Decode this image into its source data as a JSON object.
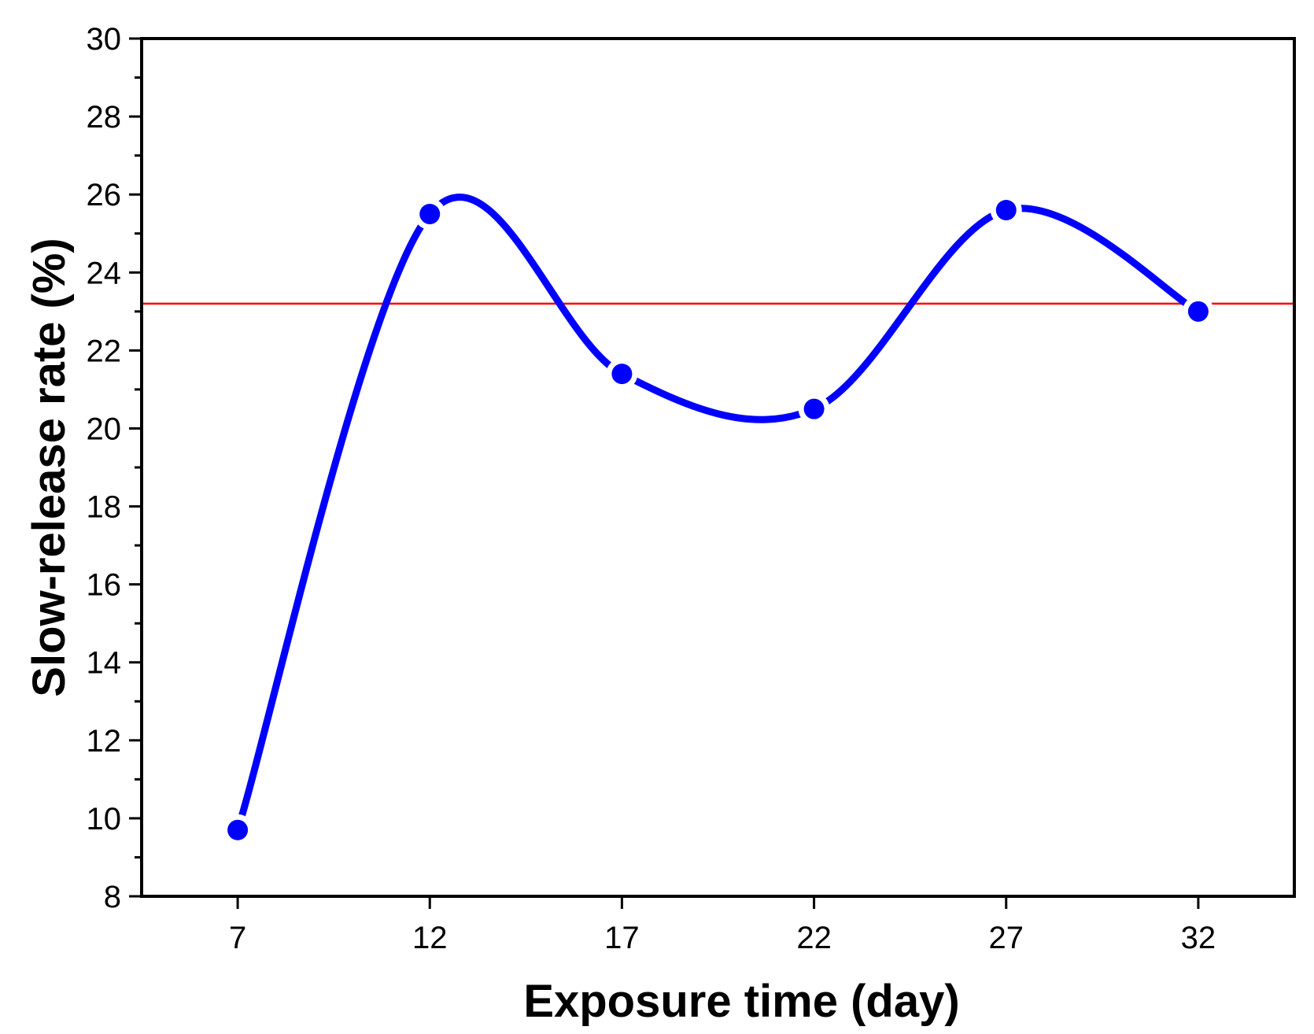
{
  "chart_data": {
    "type": "line",
    "title": "",
    "xlabel": "Exposure time (day)",
    "ylabel": "Slow-release rate (%)",
    "x": [
      7,
      12,
      17,
      22,
      27,
      32
    ],
    "series": [
      {
        "values": [
          9.7,
          25.5,
          21.4,
          20.5,
          25.6,
          23.0
        ],
        "color": "#0000ff",
        "smooth": true,
        "markers": true
      }
    ],
    "reference_line": {
      "y": 23.2,
      "color": "#ff0000"
    },
    "xlim": [
      4.5,
      34.5
    ],
    "ylim": [
      8,
      30
    ],
    "x_ticks": [
      "7",
      "12",
      "17",
      "22",
      "27",
      "32"
    ],
    "y_ticks": [
      "8",
      "10",
      "12",
      "14",
      "16",
      "18",
      "20",
      "22",
      "24",
      "26",
      "28",
      "30"
    ],
    "grid": false,
    "legend": "none"
  }
}
